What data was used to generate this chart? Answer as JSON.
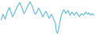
{
  "values": [
    180,
    210,
    250,
    220,
    190,
    230,
    280,
    310,
    340,
    300,
    260,
    220,
    240,
    270,
    300,
    330,
    360,
    380,
    400,
    370,
    340,
    300,
    260,
    280,
    310,
    340,
    370,
    390,
    410,
    380,
    350,
    310,
    270,
    250,
    270,
    300,
    330,
    310,
    280,
    250,
    220,
    240,
    270,
    290,
    260,
    230,
    200,
    220,
    250,
    230,
    200,
    170,
    140,
    30,
    10,
    50,
    130,
    200,
    250,
    280,
    310,
    290,
    260,
    280,
    300,
    270,
    240,
    260,
    280,
    260,
    240,
    260,
    280,
    260,
    240,
    220,
    240,
    260,
    250,
    240,
    260,
    280,
    260,
    250,
    270,
    250,
    240,
    260,
    250,
    240
  ],
  "line_color": "#4badd4",
  "background_color": "#ffffff",
  "linewidth": 0.7
}
